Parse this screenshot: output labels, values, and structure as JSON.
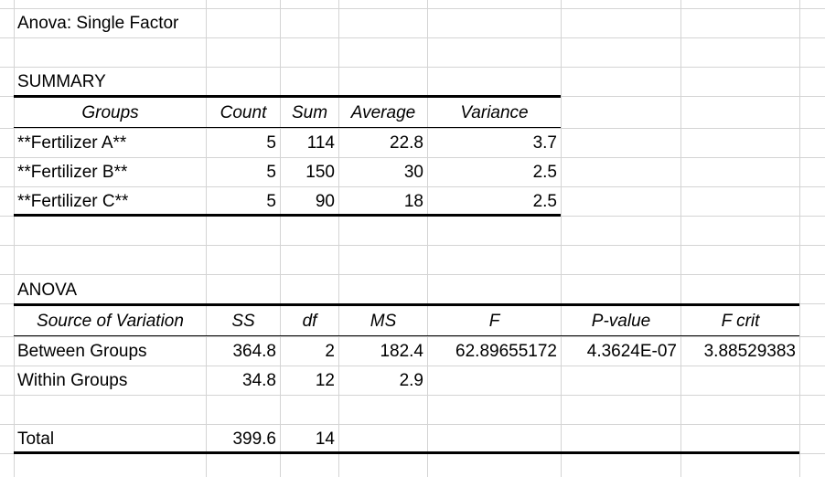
{
  "title": "Anova: Single Factor",
  "summary": {
    "label": "SUMMARY",
    "headers": [
      "Groups",
      "Count",
      "Sum",
      "Average",
      "Variance"
    ],
    "rows": [
      [
        "**Fertilizer A**",
        "5",
        "114",
        "22.8",
        "3.7"
      ],
      [
        "**Fertilizer B**",
        "5",
        "150",
        "30",
        "2.5"
      ],
      [
        "**Fertilizer C**",
        "5",
        "90",
        "18",
        "2.5"
      ]
    ]
  },
  "anova": {
    "label": "ANOVA",
    "headers": [
      "Source of Variation",
      "SS",
      "df",
      "MS",
      "F",
      "P-value",
      "F crit"
    ],
    "rows": [
      [
        "Between Groups",
        "364.8",
        "2",
        "182.4",
        "62.89655172",
        "4.3624E-07",
        "3.88529383"
      ],
      [
        "Within Groups",
        "34.8",
        "12",
        "2.9",
        "",
        "",
        ""
      ]
    ],
    "total": [
      "Total",
      "399.6",
      "14",
      "",
      "",
      "",
      ""
    ]
  }
}
